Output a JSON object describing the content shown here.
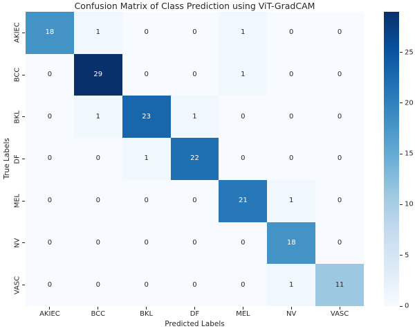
{
  "chart_data": {
    "type": "heatmap",
    "title": "Confusion Matrix of Class Prediction using ViT-GradCAM",
    "xlabel": "Predicted Labels",
    "ylabel": "True Labels",
    "x_categories": [
      "AKIEC",
      "BCC",
      "BKL",
      "DF",
      "MEL",
      "NV",
      "VASC"
    ],
    "y_categories": [
      "AKIEC",
      "BCC",
      "BKL",
      "DF",
      "MEL",
      "NV",
      "VASC"
    ],
    "matrix": [
      [
        18,
        1,
        0,
        0,
        1,
        0,
        0
      ],
      [
        0,
        29,
        0,
        0,
        1,
        0,
        0
      ],
      [
        0,
        1,
        23,
        1,
        0,
        0,
        0
      ],
      [
        0,
        0,
        1,
        22,
        0,
        0,
        0
      ],
      [
        0,
        0,
        0,
        0,
        21,
        1,
        0
      ],
      [
        0,
        0,
        0,
        0,
        0,
        18,
        0
      ],
      [
        0,
        0,
        0,
        0,
        0,
        1,
        11
      ]
    ],
    "colorbar": {
      "min": 0,
      "max": 29,
      "ticks": [
        0,
        5,
        10,
        15,
        20,
        25
      ],
      "position": "right"
    },
    "colormap": {
      "name": "Blues",
      "stops": [
        {
          "pos": 0.0,
          "color": "#f7fbff"
        },
        {
          "pos": 0.125,
          "color": "#deebf7"
        },
        {
          "pos": 0.25,
          "color": "#c6dbef"
        },
        {
          "pos": 0.375,
          "color": "#9ecae1"
        },
        {
          "pos": 0.5,
          "color": "#6baed6"
        },
        {
          "pos": 0.625,
          "color": "#4292c6"
        },
        {
          "pos": 0.75,
          "color": "#2171b5"
        },
        {
          "pos": 0.875,
          "color": "#08519c"
        },
        {
          "pos": 1.0,
          "color": "#08306b"
        }
      ]
    },
    "annotation_colors": {
      "dark": "#262626",
      "light": "#ffffff"
    },
    "grid": false,
    "background": "#ffffff"
  }
}
